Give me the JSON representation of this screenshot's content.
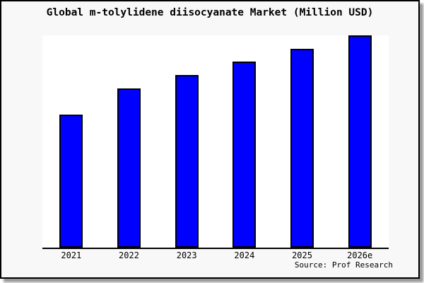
{
  "figure": {
    "title": "Global m-tolylidene diisocyanate Market (Million USD)",
    "source": "Source: Prof Research"
  },
  "chart_data": {
    "type": "bar",
    "title": "Global m-tolylidene diisocyanate Market (Million USD)",
    "categories": [
      "2021",
      "2022",
      "2023",
      "2024",
      "2025",
      "2026e"
    ],
    "values": [
      62.7,
      75.0,
      81.3,
      87.7,
      93.7,
      100
    ],
    "value_note": "relative bar heights, no y-axis scale shown; tallest bar (2026e) = 100",
    "xlabel": "",
    "ylabel": "",
    "ylim": [
      0,
      100
    ],
    "grid": false,
    "legend": null,
    "bar_color": "#0000fe",
    "bar_border_color": "#000000"
  },
  "colors": {
    "figure_background": "#f8f8f8",
    "plot_background": "#ffffff",
    "border": "#000000",
    "bar_fill": "#0000fe",
    "shadow": "#999999",
    "text": "#000000"
  }
}
